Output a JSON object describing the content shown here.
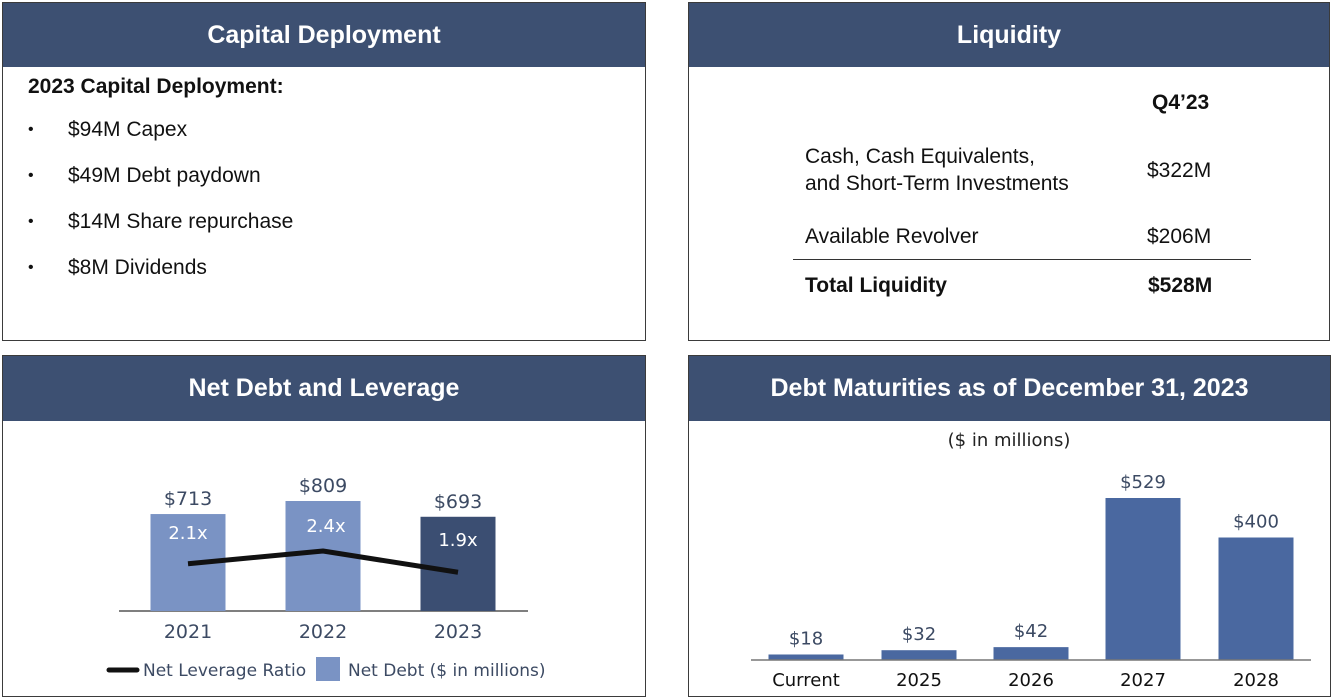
{
  "capital_deployment": {
    "header": "Capital Deployment",
    "subtitle": "2023 Capital Deployment:",
    "items": [
      "$94M Capex",
      "$49M Debt paydown",
      "$14M Share repurchase",
      "$8M Dividends"
    ]
  },
  "liquidity": {
    "header": "Liquidity",
    "column": "Q4’23",
    "rows": [
      {
        "label_line1": "Cash, Cash Equivalents,",
        "label_line2": "and Short-Term Investments",
        "value": "$322M"
      },
      {
        "label": "Available Revolver",
        "value": "$206M"
      }
    ],
    "total_label": "Total Liquidity",
    "total_value": "$528M"
  },
  "net_debt": {
    "header": "Net Debt and Leverage"
  },
  "debt_maturities": {
    "header": "Debt Maturities as of December 31, 2023"
  },
  "chart_data": [
    {
      "type": "bar",
      "title": "Net Debt and Leverage",
      "categories": [
        "2021",
        "2022",
        "2023"
      ],
      "series": [
        {
          "name": "Net Debt ($ in millions)",
          "kind": "bar",
          "values": [
            713,
            809,
            693
          ],
          "labels": [
            "$713",
            "$809",
            "$693"
          ],
          "colors": [
            "#7a93c4",
            "#7a93c4",
            "#3b4e72"
          ]
        },
        {
          "name": "Net Leverage Ratio",
          "kind": "line",
          "values": [
            2.1,
            2.4,
            1.9
          ],
          "labels": [
            "2.1x",
            "2.4x",
            "1.9x"
          ],
          "color": "#111111"
        }
      ],
      "legend": [
        "Net Leverage Ratio",
        "Net Debt ($ in millions)"
      ],
      "legend_position": "bottom",
      "ylim": [
        0,
        850
      ],
      "ratio_lim": [
        0,
        3.5
      ]
    },
    {
      "type": "bar",
      "title": "Debt Maturities as of December 31, 2023",
      "subtitle": "($ in millions)",
      "categories": [
        "Current",
        "2025",
        "2026",
        "2027",
        "2028"
      ],
      "values": [
        18,
        32,
        42,
        529,
        400
      ],
      "labels": [
        "$18",
        "$32",
        "$42",
        "$529",
        "$400"
      ],
      "color": "#4a68a0",
      "ylim": [
        0,
        600
      ]
    }
  ]
}
